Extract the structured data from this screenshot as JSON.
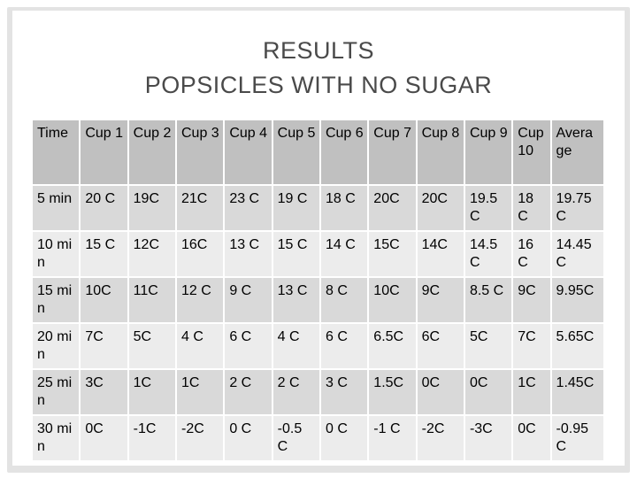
{
  "title_line1": "RESULTS",
  "title_line2": "POPSICLES WITH NO SUGAR",
  "table": {
    "headers": [
      "Time",
      "Cup 1",
      "Cup 2",
      "Cup 3",
      "Cup 4",
      "Cup 5",
      "Cup 6",
      "Cup 7",
      "Cup 8",
      "Cup 9",
      "Cup 10",
      "Average"
    ],
    "rows": [
      [
        "5 min",
        "20 C",
        "19C",
        "21C",
        "23 C",
        "19 C",
        "18 C",
        "20C",
        "20C",
        "19.5 C",
        "18 C",
        "19.75 C"
      ],
      [
        "10 min",
        "15 C",
        "12C",
        "16C",
        "13 C",
        "15 C",
        "14 C",
        "15C",
        "14C",
        "14.5 C",
        "16 C",
        "14.45 C"
      ],
      [
        "15 min",
        "10C",
        "11C",
        "12 C",
        "9 C",
        "13 C",
        "8 C",
        "10C",
        "9C",
        "8.5 C",
        "9C",
        "9.95C"
      ],
      [
        "20 min",
        "7C",
        "5C",
        "4 C",
        "6 C",
        "4 C",
        "6 C",
        "6.5C",
        "6C",
        "5C",
        "7C",
        "5.65C"
      ],
      [
        "25 min",
        "3C",
        "1C",
        "1C",
        "2 C",
        "2 C",
        "3 C",
        "1.5C",
        "0C",
        "0C",
        "1C",
        "1.45C"
      ],
      [
        "30 min",
        "0C",
        "-1C",
        "-2C",
        "0 C",
        "-0.5 C",
        "0 C",
        "-1 C",
        "-2C",
        "-3C",
        "0C",
        "-0.95 C"
      ]
    ]
  }
}
